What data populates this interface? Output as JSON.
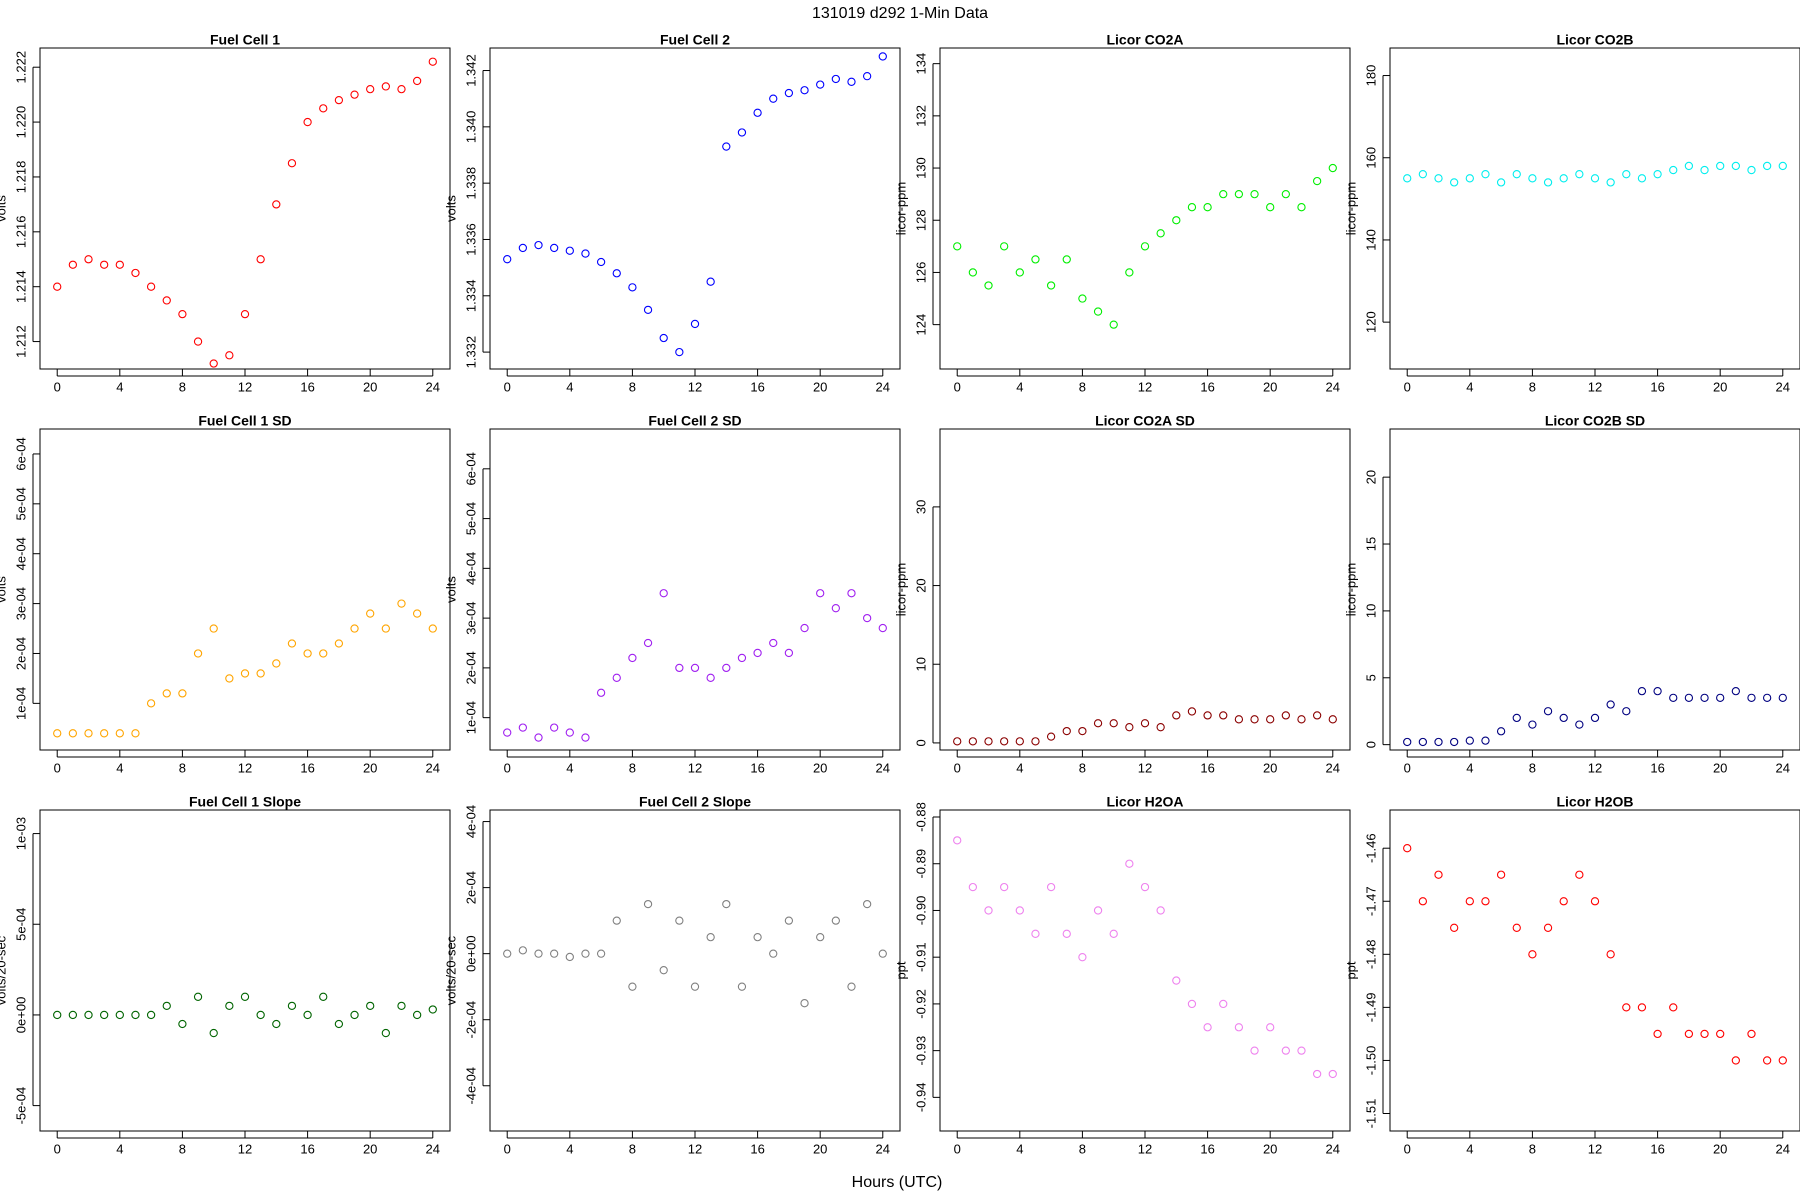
{
  "title": "131019   d292   1-Min Data",
  "x_label": "Hours (UTC)",
  "chart_data": [
    {
      "type": "scatter",
      "title": "Fuel Cell 1",
      "y_label": "volts",
      "color": "#ff0000",
      "x": [
        0,
        1,
        2,
        3,
        4,
        5,
        6,
        7,
        8,
        9,
        10,
        11,
        12,
        13,
        14,
        15,
        16,
        17,
        18,
        19,
        20,
        21,
        22,
        23,
        24
      ],
      "values": [
        1.214,
        1.2148,
        1.215,
        1.2148,
        1.2148,
        1.2145,
        1.214,
        1.2135,
        1.213,
        1.212,
        1.2112,
        1.2115,
        1.213,
        1.215,
        1.217,
        1.2185,
        1.22,
        1.2205,
        1.2208,
        1.221,
        1.2212,
        1.2213,
        1.2212,
        1.2215,
        1.2222
      ],
      "xlim": [
        -1.1,
        25.1
      ],
      "xticks": [
        0,
        4,
        8,
        12,
        16,
        20,
        24
      ],
      "ylim": [
        1.211,
        1.2227
      ],
      "yticks": [
        1.212,
        1.214,
        1.216,
        1.218,
        {
          "value": 1.22,
          "label": "1.220"
        },
        1.222
      ]
    },
    {
      "type": "scatter",
      "title": "Fuel Cell 2",
      "y_label": "volts",
      "color": "#0000ff",
      "x": [
        0,
        1,
        2,
        3,
        4,
        5,
        6,
        7,
        8,
        9,
        10,
        11,
        12,
        13,
        14,
        15,
        16,
        17,
        18,
        19,
        20,
        21,
        22,
        23,
        24
      ],
      "values": [
        1.3353,
        1.3357,
        1.3358,
        1.3357,
        1.3356,
        1.3355,
        1.3352,
        1.3348,
        1.3343,
        1.3335,
        1.3325,
        1.332,
        1.333,
        1.3345,
        1.3393,
        1.3398,
        1.3405,
        1.341,
        1.3412,
        1.3413,
        1.3415,
        1.3417,
        1.3416,
        1.3418,
        1.3425
      ],
      "xlim": [
        -1.1,
        25.1
      ],
      "xticks": [
        0,
        4,
        8,
        12,
        16,
        20,
        24
      ],
      "ylim": [
        1.3314,
        1.3428
      ],
      "yticks": [
        1.332,
        1.334,
        1.336,
        1.338,
        {
          "value": 1.34,
          "label": "1.340"
        },
        1.342
      ]
    },
    {
      "type": "scatter",
      "title": "Licor CO2A",
      "y_label": "licor-ppm",
      "color": "#00ee00",
      "x": [
        0,
        1,
        2,
        3,
        4,
        5,
        6,
        7,
        8,
        9,
        10,
        11,
        12,
        13,
        14,
        15,
        16,
        17,
        18,
        19,
        20,
        21,
        22,
        23,
        24
      ],
      "values": [
        127,
        126,
        125.5,
        127,
        126,
        126.5,
        125.5,
        126.5,
        125,
        124.5,
        124,
        126,
        127,
        127.5,
        128,
        128.5,
        128.5,
        129,
        129,
        129,
        128.5,
        129,
        128.5,
        129.5,
        130
      ],
      "xlim": [
        -1.1,
        25.1
      ],
      "xticks": [
        0,
        4,
        8,
        12,
        16,
        20,
        24
      ],
      "ylim": [
        122.3,
        134.6
      ],
      "yticks": [
        124,
        126,
        128,
        130,
        132,
        134
      ]
    },
    {
      "type": "scatter",
      "title": "Licor CO2B",
      "y_label": "licor-ppm",
      "color": "#00eeee",
      "x": [
        0,
        1,
        2,
        3,
        4,
        5,
        6,
        7,
        8,
        9,
        10,
        11,
        12,
        13,
        14,
        15,
        16,
        17,
        18,
        19,
        20,
        21,
        22,
        23,
        24
      ],
      "values": [
        155,
        156,
        155,
        154,
        155,
        156,
        154,
        156,
        155,
        154,
        155,
        156,
        155,
        154,
        156,
        155,
        156,
        157,
        158,
        157,
        158,
        158,
        157,
        158,
        158
      ],
      "xlim": [
        -1.1,
        25.1
      ],
      "xticks": [
        0,
        4,
        8,
        12,
        16,
        20,
        24
      ],
      "ylim": [
        108.6,
        186.7
      ],
      "yticks": [
        120,
        140,
        160,
        180
      ]
    },
    {
      "type": "scatter",
      "title": "Fuel Cell 1 SD",
      "y_label": "volts",
      "color": "#ffa500",
      "x": [
        0,
        1,
        2,
        3,
        4,
        5,
        6,
        7,
        8,
        9,
        10,
        11,
        12,
        13,
        14,
        15,
        16,
        17,
        18,
        19,
        20,
        21,
        22,
        23,
        24
      ],
      "values": [
        4e-05,
        4e-05,
        4e-05,
        4e-05,
        4e-05,
        4e-05,
        0.0001,
        0.00012,
        0.00012,
        0.0002,
        0.00025,
        0.00015,
        0.00016,
        0.00016,
        0.00018,
        0.00022,
        0.0002,
        0.0002,
        0.00022,
        0.00025,
        0.00028,
        0.00025,
        0.0003,
        0.00028,
        0.00025
      ],
      "xlim": [
        -1.1,
        25.1
      ],
      "xticks": [
        0,
        4,
        8,
        12,
        16,
        20,
        24
      ],
      "ylim": [
        6.5e-06,
        0.00065
      ],
      "yticks": [
        {
          "value": 0.0001,
          "label": "1e-04"
        },
        {
          "value": 0.0002,
          "label": "2e-04"
        },
        {
          "value": 0.0003,
          "label": "3e-04"
        },
        {
          "value": 0.0004,
          "label": "4e-04"
        },
        {
          "value": 0.0005,
          "label": "5e-04"
        },
        {
          "value": 0.0006,
          "label": "6e-04"
        }
      ]
    },
    {
      "type": "scatter",
      "title": "Fuel Cell 2 SD",
      "y_label": "volts",
      "color": "#a020f0",
      "x": [
        0,
        1,
        2,
        3,
        4,
        5,
        6,
        7,
        8,
        9,
        10,
        11,
        12,
        13,
        14,
        15,
        16,
        17,
        18,
        19,
        20,
        21,
        22,
        23,
        24
      ],
      "values": [
        7e-05,
        8e-05,
        6e-05,
        8e-05,
        7e-05,
        6e-05,
        0.00015,
        0.00018,
        0.00022,
        0.00025,
        0.00035,
        0.0002,
        0.0002,
        0.00018,
        0.0002,
        0.00022,
        0.00023,
        0.00025,
        0.00023,
        0.00028,
        0.00035,
        0.00032,
        0.00035,
        0.0003,
        0.00028
      ],
      "xlim": [
        -1.1,
        25.1
      ],
      "xticks": [
        0,
        4,
        8,
        12,
        16,
        20,
        24
      ],
      "ylim": [
        3.5e-05,
        0.00068
      ],
      "yticks": [
        {
          "value": 0.0001,
          "label": "1e-04"
        },
        {
          "value": 0.0002,
          "label": "2e-04"
        },
        {
          "value": 0.0003,
          "label": "3e-04"
        },
        {
          "value": 0.0004,
          "label": "4e-04"
        },
        {
          "value": 0.0005,
          "label": "5e-04"
        },
        {
          "value": 0.0006,
          "label": "6e-04"
        }
      ]
    },
    {
      "type": "scatter",
      "title": "Licor CO2A SD",
      "y_label": "licor-ppm",
      "color": "#8b0000",
      "x": [
        0,
        1,
        2,
        3,
        4,
        5,
        6,
        7,
        8,
        9,
        10,
        11,
        12,
        13,
        14,
        15,
        16,
        17,
        18,
        19,
        20,
        21,
        22,
        23,
        24
      ],
      "values": [
        0.2,
        0.2,
        0.2,
        0.2,
        0.2,
        0.2,
        0.8,
        1.5,
        1.5,
        2.5,
        2.5,
        2,
        2.5,
        2,
        3.5,
        4,
        3.5,
        3.5,
        3,
        3,
        3,
        3.5,
        3,
        3.5,
        3
      ],
      "xlim": [
        -1.1,
        25.1
      ],
      "xticks": [
        0,
        4,
        8,
        12,
        16,
        20,
        24
      ],
      "ylim": [
        -0.9,
        39.9
      ],
      "yticks": [
        0,
        10,
        20,
        30
      ]
    },
    {
      "type": "scatter",
      "title": "Licor CO2B SD",
      "y_label": "licor-ppm",
      "color": "#000080",
      "x": [
        0,
        1,
        2,
        3,
        4,
        5,
        6,
        7,
        8,
        9,
        10,
        11,
        12,
        13,
        14,
        15,
        16,
        17,
        18,
        19,
        20,
        21,
        22,
        23,
        24
      ],
      "values": [
        0.2,
        0.2,
        0.2,
        0.2,
        0.3,
        0.3,
        1,
        2,
        1.5,
        2.5,
        2,
        1.5,
        2,
        3,
        2.5,
        4,
        4,
        3.5,
        3.5,
        3.5,
        3.5,
        4,
        3.5,
        3.5,
        3.5
      ],
      "xlim": [
        -1.1,
        25.1
      ],
      "xticks": [
        0,
        4,
        8,
        12,
        16,
        20,
        24
      ],
      "ylim": [
        -0.4,
        23.6
      ],
      "yticks": [
        0,
        5,
        10,
        15,
        20
      ]
    },
    {
      "type": "scatter",
      "title": "Fuel Cell 1 Slope",
      "y_label": "volts/20-sec",
      "color": "#006400",
      "x": [
        0,
        1,
        2,
        3,
        4,
        5,
        6,
        7,
        8,
        9,
        10,
        11,
        12,
        13,
        14,
        15,
        16,
        17,
        18,
        19,
        20,
        21,
        22,
        23,
        24
      ],
      "values": [
        0,
        0,
        0,
        0,
        0,
        0,
        0,
        5e-05,
        -5e-05,
        0.0001,
        -0.0001,
        5e-05,
        0.0001,
        0,
        -5e-05,
        5e-05,
        0,
        0.0001,
        -5e-05,
        0,
        5e-05,
        -0.0001,
        5e-05,
        0,
        3e-05
      ],
      "xlim": [
        -1.1,
        25.1
      ],
      "xticks": [
        0,
        4,
        8,
        12,
        16,
        20,
        24
      ],
      "ylim": [
        -0.00064,
        0.00113
      ],
      "yticks": [
        {
          "value": -0.0005,
          "label": "-5e-04"
        },
        {
          "value": 0,
          "label": "0e+00"
        },
        {
          "value": 0.0005,
          "label": "5e-04"
        },
        {
          "value": 0.001,
          "label": "1e-03"
        }
      ]
    },
    {
      "type": "scatter",
      "title": "Fuel Cell 2 Slope",
      "y_label": "volts/20-sec",
      "color": "#808080",
      "x": [
        0,
        1,
        2,
        3,
        4,
        5,
        6,
        7,
        8,
        9,
        10,
        11,
        12,
        13,
        14,
        15,
        16,
        17,
        18,
        19,
        20,
        21,
        22,
        23,
        24
      ],
      "values": [
        0,
        1e-05,
        0,
        0,
        -1e-05,
        0,
        0,
        0.0001,
        -0.0001,
        0.00015,
        -5e-05,
        0.0001,
        -0.0001,
        5e-05,
        0.00015,
        -0.0001,
        5e-05,
        0,
        0.0001,
        -0.00015,
        5e-05,
        0.0001,
        -0.0001,
        0.00015,
        0
      ],
      "xlim": [
        -1.1,
        25.1
      ],
      "xticks": [
        0,
        4,
        8,
        12,
        16,
        20,
        24
      ],
      "ylim": [
        -0.000537,
        0.000435
      ],
      "yticks": [
        {
          "value": -0.0004,
          "label": "-4e-04"
        },
        {
          "value": -0.0002,
          "label": "-2e-04"
        },
        {
          "value": 0,
          "label": "0e+00"
        },
        {
          "value": 0.0002,
          "label": "2e-04"
        },
        {
          "value": 0.0004,
          "label": "4e-04"
        }
      ]
    },
    {
      "type": "scatter",
      "title": "Licor H2OA",
      "y_label": "ppt",
      "color": "#ee82ee",
      "x": [
        0,
        1,
        2,
        3,
        4,
        5,
        6,
        7,
        8,
        9,
        10,
        11,
        12,
        13,
        14,
        15,
        16,
        17,
        18,
        19,
        20,
        21,
        22,
        23,
        24
      ],
      "values": [
        -0.885,
        -0.895,
        -0.9,
        -0.895,
        -0.9,
        -0.905,
        -0.895,
        -0.905,
        -0.91,
        -0.9,
        -0.905,
        -0.89,
        -0.895,
        -0.9,
        -0.915,
        -0.92,
        -0.925,
        -0.92,
        -0.925,
        -0.93,
        -0.925,
        -0.93,
        -0.93,
        -0.935,
        -0.935
      ],
      "xlim": [
        -1.1,
        25.1
      ],
      "xticks": [
        0,
        4,
        8,
        12,
        16,
        20,
        24
      ],
      "ylim": [
        -0.9472,
        -0.8785
      ],
      "yticks": [
        -0.94,
        -0.93,
        -0.92,
        -0.91,
        {
          "value": -0.9,
          "label": "-0.90"
        },
        -0.89,
        -0.88
      ]
    },
    {
      "type": "scatter",
      "title": "Licor H2OB",
      "y_label": "ppt",
      "color": "#ff0000",
      "x": [
        0,
        1,
        2,
        3,
        4,
        5,
        6,
        7,
        8,
        9,
        10,
        11,
        12,
        13,
        14,
        15,
        16,
        17,
        18,
        19,
        20,
        21,
        22,
        23,
        24
      ],
      "values": [
        -1.46,
        -1.47,
        -1.465,
        -1.475,
        -1.47,
        -1.47,
        -1.465,
        -1.475,
        -1.48,
        -1.475,
        -1.47,
        -1.465,
        -1.47,
        -1.48,
        -1.49,
        -1.49,
        -1.495,
        -1.49,
        -1.495,
        -1.495,
        -1.495,
        -1.5,
        -1.495,
        -1.5,
        -1.5
      ],
      "xlim": [
        -1.1,
        25.1
      ],
      "xticks": [
        0,
        4,
        8,
        12,
        16,
        20,
        24
      ],
      "ylim": [
        -1.5133,
        -1.4528
      ],
      "yticks": [
        -1.51,
        {
          "value": -1.5,
          "label": "-1.50"
        },
        -1.49,
        -1.48,
        -1.47,
        -1.46
      ]
    }
  ]
}
